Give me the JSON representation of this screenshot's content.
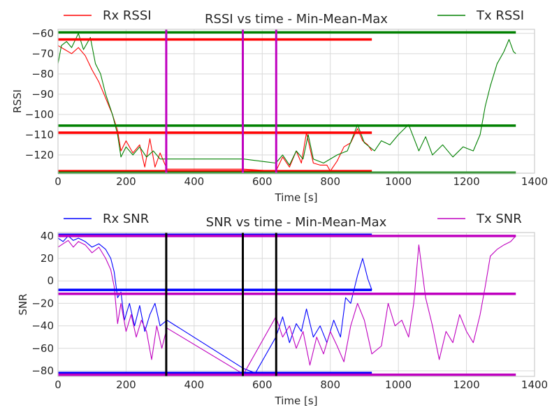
{
  "chart_data": [
    {
      "type": "line",
      "title": "RSSI vs time - Min-Mean-Max",
      "xlabel": "Time [s]",
      "ylabel": "RSSI",
      "xlim": [
        0,
        1400
      ],
      "ylim": [
        -129,
        -58
      ],
      "xticks": [
        0,
        200,
        400,
        600,
        800,
        1000,
        1200,
        1400
      ],
      "yticks": [
        -60,
        -70,
        -80,
        -90,
        -100,
        -110,
        -120
      ],
      "grid": true,
      "legend": [
        {
          "name": "Rx RSSI",
          "position": "top-left",
          "color": "#ff0000"
        },
        {
          "name": "Tx RSSI",
          "position": "top-right",
          "color": "#008000"
        }
      ],
      "series": [
        {
          "name": "Rx RSSI",
          "color": "#ff0000",
          "points": [
            [
              0,
              -66
            ],
            [
              20,
              -68
            ],
            [
              40,
              -70
            ],
            [
              60,
              -67
            ],
            [
              80,
              -71
            ],
            [
              100,
              -78
            ],
            [
              120,
              -84
            ],
            [
              140,
              -92
            ],
            [
              160,
              -100
            ],
            [
              175,
              -108
            ],
            [
              185,
              -118
            ],
            [
              200,
              -113
            ],
            [
              220,
              -119
            ],
            [
              240,
              -115
            ],
            [
              255,
              -126
            ],
            [
              270,
              -112
            ],
            [
              285,
              -126
            ],
            [
              300,
              -119
            ],
            [
              320,
              -127
            ],
            [
              545,
              -127
            ],
            [
              640,
              -128
            ],
            [
              660,
              -121
            ],
            [
              680,
              -126
            ],
            [
              700,
              -118
            ],
            [
              715,
              -124
            ],
            [
              730,
              -109
            ],
            [
              750,
              -124
            ],
            [
              770,
              -125
            ],
            [
              790,
              -125
            ],
            [
              800,
              -128
            ],
            [
              820,
              -123
            ],
            [
              840,
              -116
            ],
            [
              860,
              -114
            ],
            [
              880,
              -107
            ],
            [
              895,
              -113
            ],
            [
              910,
              -115
            ],
            [
              922,
              -118
            ]
          ]
        },
        {
          "name": "Tx RSSI",
          "color": "#008000",
          "points": [
            [
              0,
              -75
            ],
            [
              10,
              -66
            ],
            [
              25,
              -64
            ],
            [
              40,
              -67
            ],
            [
              60,
              -60
            ],
            [
              75,
              -68
            ],
            [
              95,
              -62
            ],
            [
              110,
              -75
            ],
            [
              125,
              -80
            ],
            [
              140,
              -90
            ],
            [
              160,
              -100
            ],
            [
              175,
              -110
            ],
            [
              185,
              -121
            ],
            [
              200,
              -116
            ],
            [
              220,
              -120
            ],
            [
              240,
              -116
            ],
            [
              260,
              -121
            ],
            [
              280,
              -118
            ],
            [
              300,
              -122
            ],
            [
              320,
              -122
            ],
            [
              545,
              -122
            ],
            [
              640,
              -124
            ],
            [
              660,
              -120
            ],
            [
              680,
              -125
            ],
            [
              700,
              -118
            ],
            [
              720,
              -122
            ],
            [
              735,
              -110
            ],
            [
              750,
              -122
            ],
            [
              780,
              -124
            ],
            [
              820,
              -120
            ],
            [
              850,
              -118
            ],
            [
              880,
              -105
            ],
            [
              900,
              -114
            ],
            [
              930,
              -118
            ],
            [
              950,
              -113
            ],
            [
              975,
              -115
            ],
            [
              1000,
              -110
            ],
            [
              1030,
              -105
            ],
            [
              1060,
              -118
            ],
            [
              1080,
              -111
            ],
            [
              1100,
              -120
            ],
            [
              1130,
              -115
            ],
            [
              1160,
              -121
            ],
            [
              1190,
              -116
            ],
            [
              1220,
              -118
            ],
            [
              1240,
              -110
            ],
            [
              1255,
              -96
            ],
            [
              1270,
              -86
            ],
            [
              1290,
              -75
            ],
            [
              1310,
              -69
            ],
            [
              1325,
              -63
            ],
            [
              1338,
              -69
            ],
            [
              1345,
              -70
            ]
          ]
        }
      ],
      "reference_lines": [
        {
          "series": "Rx RSSI",
          "stat": "max",
          "y": -63,
          "x_range": [
            0,
            922
          ],
          "color": "#ff0000"
        },
        {
          "series": "Rx RSSI",
          "stat": "mean",
          "y": -109,
          "x_range": [
            0,
            922
          ],
          "color": "#ff0000"
        },
        {
          "series": "Rx RSSI",
          "stat": "min",
          "y": -128,
          "x_range": [
            0,
            922
          ],
          "color": "#ff0000"
        },
        {
          "series": "Tx RSSI",
          "stat": "max",
          "y": -59.5,
          "x_range": [
            0,
            1345
          ],
          "color": "#008000"
        },
        {
          "series": "Tx RSSI",
          "stat": "mean",
          "y": -105.5,
          "x_range": [
            0,
            1345
          ],
          "color": "#008000"
        },
        {
          "series": "Tx RSSI",
          "stat": "min",
          "y": -128.8,
          "x_range": [
            0,
            1345
          ],
          "color": "#008000"
        }
      ],
      "vertical_lines": {
        "x": [
          318,
          543,
          641
        ],
        "color": "#bf00bf"
      }
    },
    {
      "type": "line",
      "title": "SNR vs time - Min-Mean-Max",
      "xlabel": "Time [s]",
      "ylabel": "SNR",
      "xlim": [
        0,
        1400
      ],
      "ylim": [
        -85,
        43
      ],
      "xticks": [
        0,
        200,
        400,
        600,
        800,
        1000,
        1200,
        1400
      ],
      "yticks": [
        40,
        20,
        0,
        -20,
        -40,
        -60,
        -80
      ],
      "grid": true,
      "legend": [
        {
          "name": "Rx SNR",
          "position": "top-left",
          "color": "#0000ff"
        },
        {
          "name": "Tx SNR",
          "position": "top-right",
          "color": "#bf00bf"
        }
      ],
      "series": [
        {
          "name": "Rx SNR",
          "color": "#0000ff",
          "points": [
            [
              0,
              38
            ],
            [
              15,
              35
            ],
            [
              30,
              40
            ],
            [
              45,
              36
            ],
            [
              60,
              38
            ],
            [
              80,
              35
            ],
            [
              100,
              30
            ],
            [
              120,
              33
            ],
            [
              140,
              28
            ],
            [
              155,
              20
            ],
            [
              165,
              8
            ],
            [
              175,
              -15
            ],
            [
              185,
              -10
            ],
            [
              195,
              -35
            ],
            [
              210,
              -20
            ],
            [
              225,
              -40
            ],
            [
              240,
              -22
            ],
            [
              255,
              -45
            ],
            [
              270,
              -30
            ],
            [
              285,
              -20
            ],
            [
              300,
              -40
            ],
            [
              320,
              -35
            ],
            [
              545,
              -78
            ],
            [
              580,
              -82
            ],
            [
              640,
              -50
            ],
            [
              660,
              -32
            ],
            [
              680,
              -55
            ],
            [
              700,
              -38
            ],
            [
              715,
              -45
            ],
            [
              730,
              -25
            ],
            [
              750,
              -50
            ],
            [
              770,
              -40
            ],
            [
              790,
              -55
            ],
            [
              810,
              -35
            ],
            [
              830,
              -50
            ],
            [
              845,
              -15
            ],
            [
              860,
              -20
            ],
            [
              880,
              5
            ],
            [
              895,
              20
            ],
            [
              910,
              2
            ],
            [
              922,
              -8
            ]
          ]
        },
        {
          "name": "Tx SNR",
          "color": "#bf00bf",
          "points": [
            [
              0,
              30
            ],
            [
              15,
              33
            ],
            [
              30,
              36
            ],
            [
              45,
              30
            ],
            [
              60,
              35
            ],
            [
              80,
              32
            ],
            [
              100,
              25
            ],
            [
              120,
              30
            ],
            [
              140,
              20
            ],
            [
              155,
              10
            ],
            [
              165,
              -5
            ],
            [
              175,
              -38
            ],
            [
              185,
              -20
            ],
            [
              200,
              -45
            ],
            [
              215,
              -30
            ],
            [
              230,
              -50
            ],
            [
              245,
              -35
            ],
            [
              260,
              -45
            ],
            [
              275,
              -70
            ],
            [
              290,
              -40
            ],
            [
              305,
              -60
            ],
            [
              320,
              -42
            ],
            [
              545,
              -83
            ],
            [
              640,
              -32
            ],
            [
              660,
              -50
            ],
            [
              680,
              -40
            ],
            [
              700,
              -60
            ],
            [
              720,
              -45
            ],
            [
              740,
              -75
            ],
            [
              760,
              -50
            ],
            [
              780,
              -65
            ],
            [
              800,
              -45
            ],
            [
              820,
              -58
            ],
            [
              840,
              -72
            ],
            [
              860,
              -40
            ],
            [
              880,
              -20
            ],
            [
              900,
              -35
            ],
            [
              922,
              -65
            ],
            [
              950,
              -58
            ],
            [
              970,
              -20
            ],
            [
              990,
              -40
            ],
            [
              1010,
              -35
            ],
            [
              1030,
              -50
            ],
            [
              1045,
              -20
            ],
            [
              1060,
              32
            ],
            [
              1080,
              -15
            ],
            [
              1100,
              -40
            ],
            [
              1120,
              -70
            ],
            [
              1140,
              -45
            ],
            [
              1160,
              -55
            ],
            [
              1180,
              -30
            ],
            [
              1200,
              -45
            ],
            [
              1220,
              -55
            ],
            [
              1240,
              -30
            ],
            [
              1255,
              -5
            ],
            [
              1270,
              22
            ],
            [
              1290,
              28
            ],
            [
              1310,
              32
            ],
            [
              1330,
              35
            ],
            [
              1345,
              40
            ]
          ]
        }
      ],
      "reference_lines": [
        {
          "series": "Rx SNR",
          "stat": "max",
          "y": 41,
          "x_range": [
            0,
            922
          ],
          "color": "#0000ff"
        },
        {
          "series": "Rx SNR",
          "stat": "mean",
          "y": -8,
          "x_range": [
            0,
            922
          ],
          "color": "#0000ff"
        },
        {
          "series": "Rx SNR",
          "stat": "min",
          "y": -82,
          "x_range": [
            0,
            922
          ],
          "color": "#0000ff"
        },
        {
          "series": "Tx SNR",
          "stat": "max",
          "y": 40,
          "x_range": [
            0,
            1345
          ],
          "color": "#bf00bf"
        },
        {
          "series": "Tx SNR",
          "stat": "mean",
          "y": -11.5,
          "x_range": [
            0,
            1345
          ],
          "color": "#bf00bf"
        },
        {
          "series": "Tx SNR",
          "stat": "min",
          "y": -83.5,
          "x_range": [
            0,
            1345
          ],
          "color": "#bf00bf"
        }
      ],
      "vertical_lines": {
        "x": [
          318,
          543,
          641
        ],
        "color": "#000000"
      }
    }
  ]
}
